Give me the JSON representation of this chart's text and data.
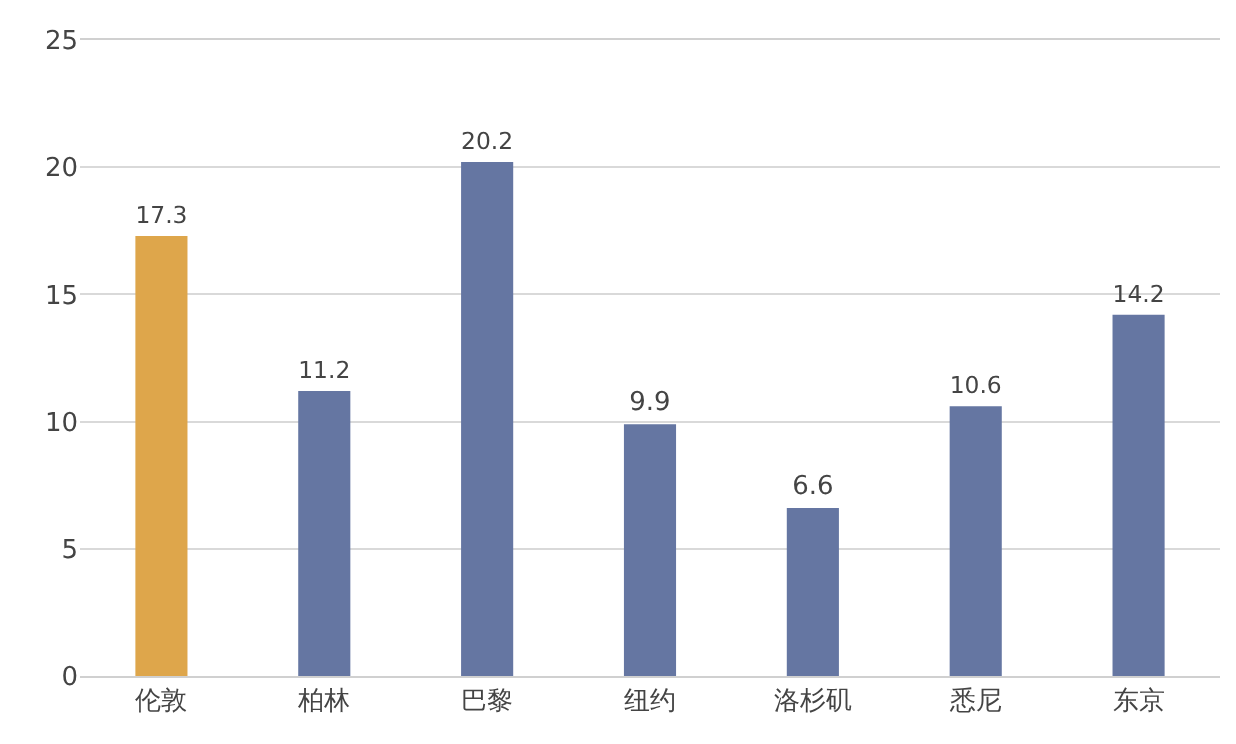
{
  "chart_data": {
    "type": "bar",
    "categories": [
      "伦敦",
      "柏林",
      "巴黎",
      "纽约",
      "洛杉矶",
      "悉尼",
      "东京"
    ],
    "values": [
      17.3,
      11.2,
      20.2,
      9.9,
      6.6,
      10.6,
      14.2
    ],
    "colors": [
      "#dea64b",
      "#6576a2",
      "#6576a2",
      "#6576a2",
      "#6576a2",
      "#6576a2",
      "#6576a2"
    ],
    "ylim": [
      0,
      25
    ],
    "yticks": [
      0,
      5,
      10,
      15,
      20,
      25
    ],
    "grid": "y",
    "data_labels": true
  }
}
